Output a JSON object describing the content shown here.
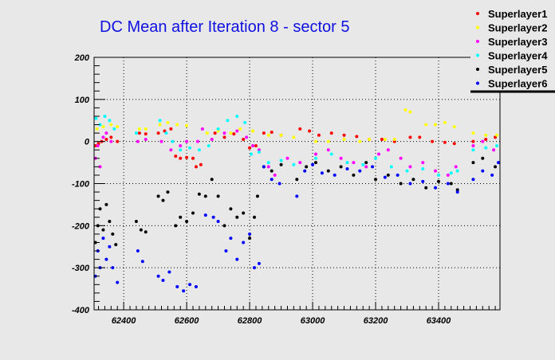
{
  "chart_data": {
    "type": "scatter",
    "title": "DC Mean after Iteration 8 - sector 5",
    "xlabel": "",
    "ylabel": "",
    "xlim": [
      62306,
      63595
    ],
    "ylim": [
      -400,
      200
    ],
    "grid": true,
    "legend_position": "top-right",
    "xticks": [
      62400,
      62600,
      62800,
      63000,
      63200,
      63400
    ],
    "yticks": [
      200,
      100,
      0,
      -100,
      -200,
      -300,
      -400
    ],
    "series": [
      {
        "name": "Superlayer1",
        "color": "#ff0000",
        "points": [
          [
            62310,
            -10
          ],
          [
            62320,
            -5
          ],
          [
            62330,
            0
          ],
          [
            62345,
            5
          ],
          [
            62360,
            10
          ],
          [
            62380,
            0
          ],
          [
            62450,
            20
          ],
          [
            62470,
            18
          ],
          [
            62510,
            20
          ],
          [
            62530,
            25
          ],
          [
            62550,
            30
          ],
          [
            62565,
            -35
          ],
          [
            62580,
            -40
          ],
          [
            62600,
            -38
          ],
          [
            62620,
            -40
          ],
          [
            62630,
            -60
          ],
          [
            62645,
            -55
          ],
          [
            62690,
            20
          ],
          [
            62720,
            10
          ],
          [
            62750,
            18
          ],
          [
            62780,
            5
          ],
          [
            62800,
            -15
          ],
          [
            62820,
            -10
          ],
          [
            62845,
            20
          ],
          [
            62870,
            22
          ],
          [
            62900,
            15
          ],
          [
            62960,
            30
          ],
          [
            62990,
            25
          ],
          [
            63020,
            15
          ],
          [
            63060,
            20
          ],
          [
            63100,
            15
          ],
          [
            63140,
            12
          ],
          [
            63180,
            5
          ],
          [
            63220,
            5
          ],
          [
            63260,
            0
          ],
          [
            63310,
            10
          ],
          [
            63340,
            10
          ],
          [
            63380,
            0
          ],
          [
            63420,
            -2
          ],
          [
            63450,
            -5
          ],
          [
            63510,
            0
          ],
          [
            63550,
            5
          ],
          [
            63580,
            10
          ]
        ]
      },
      {
        "name": "Superlayer2",
        "color": "#ffff00",
        "points": [
          [
            62315,
            30
          ],
          [
            62335,
            35
          ],
          [
            62360,
            40
          ],
          [
            62380,
            35
          ],
          [
            62450,
            30
          ],
          [
            62470,
            30
          ],
          [
            62515,
            40
          ],
          [
            62540,
            45
          ],
          [
            62570,
            40
          ],
          [
            62600,
            38
          ],
          [
            62665,
            20
          ],
          [
            62700,
            25
          ],
          [
            62740,
            20
          ],
          [
            62770,
            30
          ],
          [
            62810,
            25
          ],
          [
            62860,
            15
          ],
          [
            62900,
            15
          ],
          [
            62940,
            10
          ],
          [
            63010,
            0
          ],
          [
            63050,
            0
          ],
          [
            63100,
            5
          ],
          [
            63150,
            0
          ],
          [
            63180,
            5
          ],
          [
            63230,
            5
          ],
          [
            63260,
            5
          ],
          [
            63295,
            75
          ],
          [
            63310,
            70
          ],
          [
            63360,
            40
          ],
          [
            63390,
            40
          ],
          [
            63420,
            45
          ],
          [
            63450,
            35
          ],
          [
            63510,
            20
          ],
          [
            63550,
            15
          ],
          [
            63585,
            15
          ]
        ]
      },
      {
        "name": "Superlayer3",
        "color": "#ff00ff",
        "points": [
          [
            62310,
            -40
          ],
          [
            62318,
            -10
          ],
          [
            62325,
            -60
          ],
          [
            62335,
            10
          ],
          [
            62345,
            20
          ],
          [
            62360,
            0
          ],
          [
            62445,
            0
          ],
          [
            62470,
            5
          ],
          [
            62520,
            0
          ],
          [
            62550,
            -20
          ],
          [
            62580,
            -10
          ],
          [
            62600,
            0
          ],
          [
            62635,
            0
          ],
          [
            62650,
            30
          ],
          [
            62680,
            5
          ],
          [
            62720,
            20
          ],
          [
            62760,
            25
          ],
          [
            62790,
            10
          ],
          [
            62810,
            -10
          ],
          [
            62830,
            -20
          ],
          [
            62860,
            -60
          ],
          [
            62880,
            -80
          ],
          [
            62920,
            -40
          ],
          [
            62960,
            -50
          ],
          [
            63010,
            -30
          ],
          [
            63050,
            -20
          ],
          [
            63090,
            -40
          ],
          [
            63130,
            -50
          ],
          [
            63170,
            -60
          ],
          [
            63210,
            -30
          ],
          [
            63240,
            -20
          ],
          [
            63280,
            -40
          ],
          [
            63310,
            -60
          ],
          [
            63350,
            -50
          ],
          [
            63390,
            -70
          ],
          [
            63430,
            -80
          ],
          [
            63455,
            -60
          ],
          [
            63510,
            -10
          ],
          [
            63540,
            0
          ],
          [
            63575,
            -20
          ]
        ]
      },
      {
        "name": "Superlayer4",
        "color": "#00ffff",
        "points": [
          [
            62312,
            55
          ],
          [
            62325,
            40
          ],
          [
            62340,
            60
          ],
          [
            62355,
            50
          ],
          [
            62370,
            30
          ],
          [
            62440,
            20
          ],
          [
            62515,
            50
          ],
          [
            62535,
            20
          ],
          [
            62555,
            0
          ],
          [
            62580,
            -20
          ],
          [
            62610,
            -15
          ],
          [
            62640,
            -20
          ],
          [
            62670,
            -10
          ],
          [
            62700,
            30
          ],
          [
            62730,
            50
          ],
          [
            62760,
            60
          ],
          [
            62785,
            45
          ],
          [
            62805,
            -30
          ],
          [
            62830,
            -25
          ],
          [
            62860,
            -50
          ],
          [
            62900,
            -45
          ],
          [
            62940,
            -55
          ],
          [
            63010,
            -40
          ],
          [
            63060,
            -30
          ],
          [
            63110,
            -50
          ],
          [
            63160,
            -55
          ],
          [
            63200,
            -40
          ],
          [
            63250,
            -60
          ],
          [
            63300,
            -70
          ],
          [
            63350,
            -65
          ],
          [
            63400,
            -80
          ],
          [
            63440,
            -75
          ],
          [
            63460,
            -70
          ],
          [
            63510,
            -20
          ],
          [
            63550,
            -15
          ],
          [
            63585,
            -10
          ]
        ]
      },
      {
        "name": "Superlayer5",
        "color": "#000000",
        "points": [
          [
            62310,
            -240
          ],
          [
            62318,
            -200
          ],
          [
            62325,
            -160
          ],
          [
            62335,
            -210
          ],
          [
            62345,
            -150
          ],
          [
            62355,
            -190
          ],
          [
            62365,
            -220
          ],
          [
            62375,
            -245
          ],
          [
            62440,
            -190
          ],
          [
            62455,
            -210
          ],
          [
            62470,
            -215
          ],
          [
            62510,
            -130
          ],
          [
            62525,
            -140
          ],
          [
            62540,
            -120
          ],
          [
            62565,
            -200
          ],
          [
            62580,
            -180
          ],
          [
            62600,
            -190
          ],
          [
            62620,
            -170
          ],
          [
            62640,
            -125
          ],
          [
            62660,
            -130
          ],
          [
            62680,
            -90
          ],
          [
            62700,
            -130
          ],
          [
            62720,
            -200
          ],
          [
            62740,
            -160
          ],
          [
            62760,
            -180
          ],
          [
            62780,
            -170
          ],
          [
            62800,
            -230
          ],
          [
            62815,
            -180
          ],
          [
            62825,
            -130
          ],
          [
            62845,
            -60
          ],
          [
            62870,
            -70
          ],
          [
            62900,
            -55
          ],
          [
            62950,
            -90
          ],
          [
            62980,
            -60
          ],
          [
            63010,
            -50
          ],
          [
            63050,
            -70
          ],
          [
            63090,
            -60
          ],
          [
            63130,
            -80
          ],
          [
            63170,
            -50
          ],
          [
            63200,
            -90
          ],
          [
            63240,
            -80
          ],
          [
            63280,
            -100
          ],
          [
            63320,
            -90
          ],
          [
            63360,
            -110
          ],
          [
            63400,
            -95
          ],
          [
            63440,
            -100
          ],
          [
            63460,
            -115
          ],
          [
            63510,
            -50
          ],
          [
            63540,
            -40
          ],
          [
            63580,
            -60
          ]
        ]
      },
      {
        "name": "Superlayer6",
        "color": "#0000ff",
        "points": [
          [
            62310,
            -320
          ],
          [
            62318,
            -260
          ],
          [
            62325,
            -300
          ],
          [
            62335,
            -230
          ],
          [
            62345,
            -280
          ],
          [
            62355,
            -250
          ],
          [
            62365,
            -300
          ],
          [
            62380,
            -335
          ],
          [
            62445,
            -260
          ],
          [
            62460,
            -285
          ],
          [
            62510,
            -320
          ],
          [
            62525,
            -330
          ],
          [
            62545,
            -310
          ],
          [
            62570,
            -345
          ],
          [
            62590,
            -355
          ],
          [
            62610,
            -340
          ],
          [
            62630,
            -345
          ],
          [
            62660,
            -175
          ],
          [
            62685,
            -180
          ],
          [
            62700,
            -190
          ],
          [
            62725,
            -260
          ],
          [
            62740,
            -230
          ],
          [
            62760,
            -280
          ],
          [
            62780,
            -240
          ],
          [
            62800,
            -220
          ],
          [
            62815,
            -300
          ],
          [
            62830,
            -290
          ],
          [
            62845,
            -60
          ],
          [
            62870,
            -90
          ],
          [
            62895,
            -100
          ],
          [
            62950,
            -130
          ],
          [
            62975,
            -70
          ],
          [
            63000,
            -55
          ],
          [
            63030,
            -75
          ],
          [
            63070,
            -80
          ],
          [
            63110,
            -65
          ],
          [
            63150,
            -70
          ],
          [
            63190,
            -60
          ],
          [
            63230,
            -85
          ],
          [
            63270,
            -80
          ],
          [
            63310,
            -100
          ],
          [
            63350,
            -95
          ],
          [
            63390,
            -110
          ],
          [
            63430,
            -100
          ],
          [
            63460,
            -120
          ],
          [
            63510,
            -90
          ],
          [
            63540,
            -70
          ],
          [
            63570,
            -80
          ],
          [
            63590,
            -50
          ]
        ]
      }
    ]
  }
}
